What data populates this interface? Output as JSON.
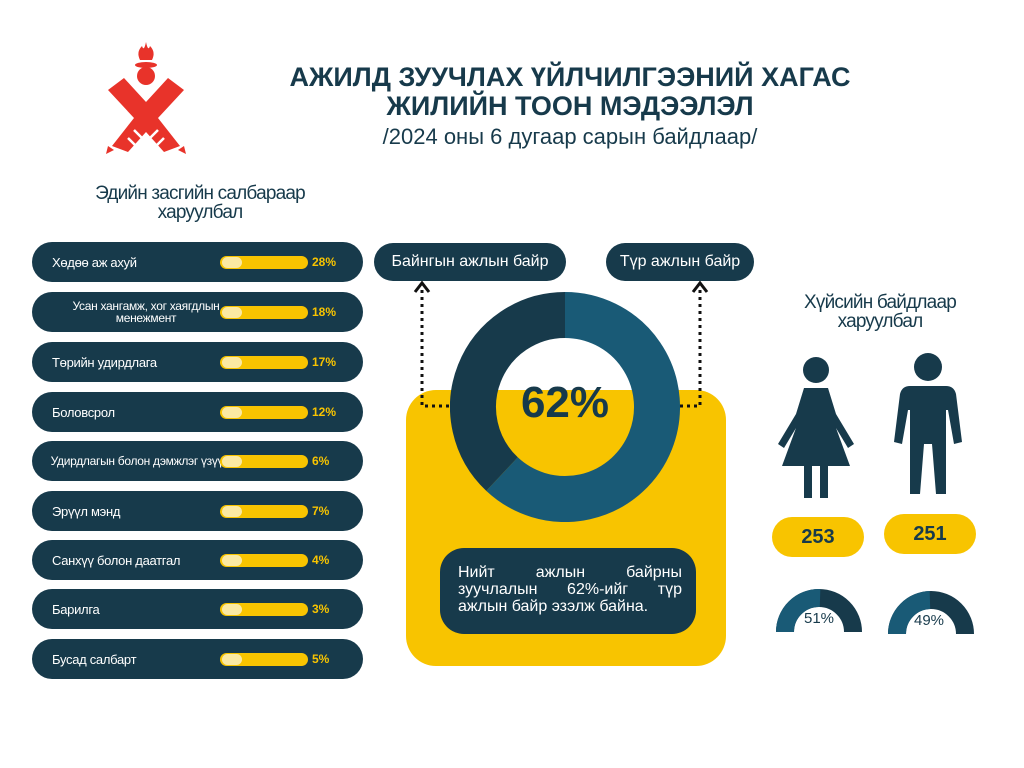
{
  "header": {
    "title_line1": "АЖИЛД ЗУУЧЛАХ ҮЙЛЧИЛГЭЭНИЙ  ХАГАС",
    "title_line2": "ЖИЛИЙН ТООН МЭДЭЭЛЭЛ",
    "subtitle": "/2024 оны 6 дугаар сарын байдлаар/"
  },
  "sectors_section": {
    "title_line1": "Эдийн засгийн салбараар",
    "title_line2": "харуулбал"
  },
  "gender_section": {
    "title_line1": "Хүйсийн байдлаар",
    "title_line2": "харуулбал"
  },
  "job_types": {
    "permanent_label": "Байнгын ажлын байр",
    "temporary_label": "Түр ажлын байр",
    "center_value": "62%"
  },
  "note": "Нийт ажлын байрны зуучлалын 62%-ийг түр ажлын байр эзэлж байна.",
  "gender": {
    "female": {
      "count": "253",
      "percent": "51%"
    },
    "male": {
      "count": "251",
      "percent": "49%"
    }
  },
  "colors": {
    "navy": "#173a4b",
    "teal": "#195a76",
    "yellow": "#f8c400",
    "logo_red": "#e8332a"
  },
  "icons": [
    "logo-icon",
    "female-icon",
    "male-icon",
    "arrow-up-icon"
  ],
  "chart_data": [
    {
      "type": "bar",
      "title": "Эдийн засгийн салбараар харуулбал",
      "categories": [
        "Хөдөө аж ахуй",
        "Усан хангамж, хог хаягдлын менежмент",
        "Төрийн удирдлага",
        "Боловсрол",
        "Удирдлагын болон дэмжлэг үзүүлэх",
        "Эрүүл мэнд",
        "Санхүү болон даатгал",
        "Барилга",
        "Бусад салбарт"
      ],
      "values": [
        28,
        18,
        17,
        12,
        6,
        7,
        4,
        3,
        5
      ],
      "labels": [
        "28%",
        "18%",
        "17%",
        "12%",
        "6%",
        "7%",
        "4%",
        "3%",
        "5%"
      ]
    },
    {
      "type": "pie",
      "categories": [
        "Түр ажлын байр",
        "Байнгын ажлын байр"
      ],
      "values": [
        62,
        38
      ]
    },
    {
      "type": "pie",
      "categories": [
        "253",
        "251"
      ],
      "values": [
        51,
        49
      ]
    }
  ]
}
